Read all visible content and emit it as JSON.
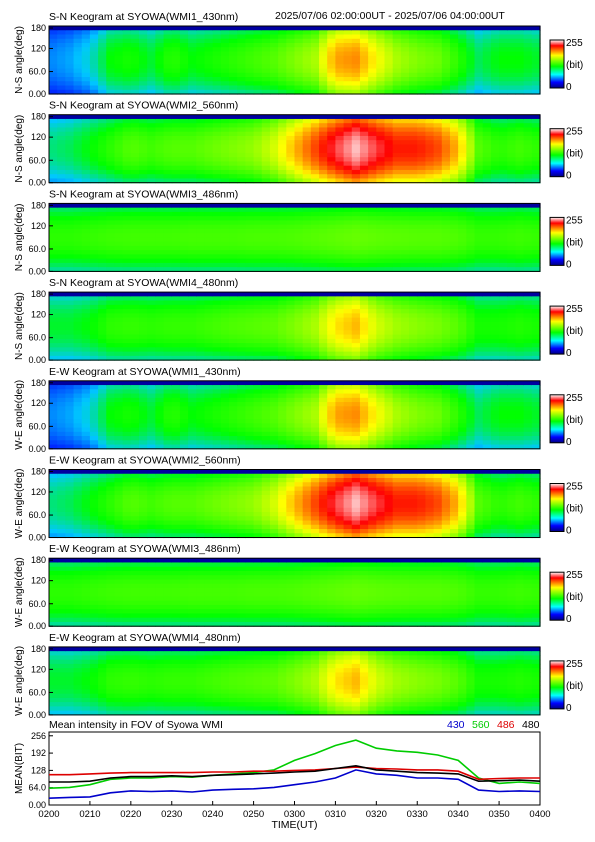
{
  "header": {
    "time_range": "2025/07/06 02:00:00UT - 2025/07/06 04:00:00UT"
  },
  "panels": [
    {
      "title": "S-N Keogram at SYOWA(WMI1_430nm)",
      "ylabel": "N-S angle(deg)",
      "yticks": [
        "180",
        "120",
        "60.0",
        "0.00"
      ],
      "cb_max": "255",
      "cb_unit": "(bit)",
      "cb_min": "0",
      "profile": "p430"
    },
    {
      "title": "S-N Keogram at SYOWA(WMI2_560nm)",
      "ylabel": "N-S angle(deg)",
      "yticks": [
        "180",
        "120",
        "60.0",
        "0.00"
      ],
      "cb_max": "255",
      "cb_unit": "(bit)",
      "cb_min": "0",
      "profile": "p560"
    },
    {
      "title": "S-N Keogram at SYOWA(WMI3_486nm)",
      "ylabel": "N-S angle(deg)",
      "yticks": [
        "180",
        "120",
        "60.0",
        "0.00"
      ],
      "cb_max": "255",
      "cb_unit": "(bit)",
      "cb_min": "0",
      "profile": "p486"
    },
    {
      "title": "S-N Keogram at SYOWA(WMI4_480nm)",
      "ylabel": "N-S angle(deg)",
      "yticks": [
        "180",
        "120",
        "60.0",
        "0.00"
      ],
      "cb_max": "255",
      "cb_unit": "(bit)",
      "cb_min": "0",
      "profile": "p480"
    },
    {
      "title": "E-W Keogram at SYOWA(WMI1_430nm)",
      "ylabel": "W-E angle(deg)",
      "yticks": [
        "180",
        "120",
        "60.0",
        "0.00"
      ],
      "cb_max": "255",
      "cb_unit": "(bit)",
      "cb_min": "0",
      "profile": "p430"
    },
    {
      "title": "E-W Keogram at SYOWA(WMI2_560nm)",
      "ylabel": "W-E angle(deg)",
      "yticks": [
        "180",
        "120",
        "60.0",
        "0.00"
      ],
      "cb_max": "255",
      "cb_unit": "(bit)",
      "cb_min": "0",
      "profile": "p560"
    },
    {
      "title": "E-W Keogram at SYOWA(WMI3_486nm)",
      "ylabel": "W-E angle(deg)",
      "yticks": [
        "180",
        "120",
        "60.0",
        "0.00"
      ],
      "cb_max": "255",
      "cb_unit": "(bit)",
      "cb_min": "0",
      "profile": "p486"
    },
    {
      "title": "E-W Keogram at SYOWA(WMI4_480nm)",
      "ylabel": "W-E angle(deg)",
      "yticks": [
        "180",
        "120",
        "60.0",
        "0.00"
      ],
      "cb_max": "255",
      "cb_unit": "(bit)",
      "cb_min": "0",
      "profile": "p480"
    }
  ],
  "colorbar_colors": [
    "#ffffff",
    "#ff0000",
    "#ffff00",
    "#00ff00",
    "#00ffff",
    "#0000ff",
    "#000080"
  ],
  "chart_data": [
    {
      "type": "heatmap",
      "title": "S-N Keogram at SYOWA(WMI1_430nm)",
      "ylabel": "N-S angle(deg)",
      "ylim": [
        0,
        180
      ],
      "colorbar": {
        "min": 0,
        "max": 255,
        "unit": "(bit)"
      },
      "time_minutes_from_0200": [
        0,
        5,
        10,
        15,
        20,
        25,
        30,
        35,
        40,
        45,
        50,
        55,
        60,
        65,
        70,
        75,
        80,
        85,
        90,
        95,
        100,
        105,
        110,
        115,
        120
      ],
      "center_intensity_bit": [
        60,
        65,
        75,
        100,
        105,
        95,
        110,
        100,
        105,
        110,
        115,
        120,
        130,
        140,
        180,
        185,
        160,
        140,
        130,
        125,
        110,
        90,
        100,
        100,
        95
      ]
    },
    {
      "type": "heatmap",
      "title": "S-N Keogram at SYOWA(WMI2_560nm)",
      "ylabel": "N-S angle(deg)",
      "ylim": [
        0,
        180
      ],
      "colorbar": {
        "min": 0,
        "max": 255,
        "unit": "(bit)"
      },
      "time_minutes_from_0200": [
        0,
        5,
        10,
        15,
        20,
        25,
        30,
        35,
        40,
        45,
        50,
        55,
        60,
        65,
        70,
        75,
        80,
        85,
        90,
        95,
        100,
        105,
        110,
        115,
        120
      ],
      "center_intensity_bit": [
        85,
        90,
        100,
        110,
        120,
        115,
        120,
        120,
        125,
        130,
        135,
        150,
        175,
        200,
        225,
        245,
        225,
        210,
        210,
        200,
        175,
        120,
        110,
        115,
        110
      ]
    },
    {
      "type": "heatmap",
      "title": "S-N Keogram at SYOWA(WMI3_486nm)",
      "ylabel": "N-S angle(deg)",
      "ylim": [
        0,
        180
      ],
      "colorbar": {
        "min": 0,
        "max": 255,
        "unit": "(bit)"
      },
      "time_minutes_from_0200": [
        0,
        5,
        10,
        15,
        20,
        25,
        30,
        35,
        40,
        45,
        50,
        55,
        60,
        65,
        70,
        75,
        80,
        85,
        90,
        95,
        100,
        105,
        110,
        115,
        120
      ],
      "center_intensity_bit": [
        110,
        110,
        112,
        114,
        115,
        115,
        115,
        116,
        116,
        116,
        117,
        117,
        118,
        120,
        122,
        124,
        122,
        121,
        120,
        120,
        118,
        112,
        112,
        114,
        112
      ]
    },
    {
      "type": "heatmap",
      "title": "S-N Keogram at SYOWA(WMI4_480nm)",
      "ylabel": "N-S angle(deg)",
      "ylim": [
        0,
        180
      ],
      "colorbar": {
        "min": 0,
        "max": 255,
        "unit": "(bit)"
      },
      "time_minutes_from_0200": [
        0,
        5,
        10,
        15,
        20,
        25,
        30,
        35,
        40,
        45,
        50,
        55,
        60,
        65,
        70,
        75,
        80,
        85,
        90,
        95,
        100,
        105,
        110,
        115,
        120
      ],
      "center_intensity_bit": [
        95,
        95,
        100,
        110,
        112,
        110,
        112,
        112,
        115,
        118,
        120,
        122,
        130,
        140,
        165,
        175,
        150,
        138,
        132,
        128,
        120,
        105,
        105,
        108,
        105
      ]
    },
    {
      "type": "heatmap",
      "title": "E-W Keogram at SYOWA(WMI1_430nm)",
      "ylabel": "W-E angle(deg)",
      "ylim": [
        0,
        180
      ],
      "colorbar": {
        "min": 0,
        "max": 255,
        "unit": "(bit)"
      },
      "time_minutes_from_0200": [
        0,
        5,
        10,
        15,
        20,
        25,
        30,
        35,
        40,
        45,
        50,
        55,
        60,
        65,
        70,
        75,
        80,
        85,
        90,
        95,
        100,
        105,
        110,
        115,
        120
      ],
      "center_intensity_bit": [
        60,
        65,
        75,
        100,
        105,
        95,
        110,
        100,
        105,
        110,
        115,
        120,
        130,
        140,
        180,
        185,
        160,
        140,
        130,
        125,
        110,
        90,
        100,
        100,
        95
      ]
    },
    {
      "type": "heatmap",
      "title": "E-W Keogram at SYOWA(WMI2_560nm)",
      "ylabel": "W-E angle(deg)",
      "ylim": [
        0,
        180
      ],
      "colorbar": {
        "min": 0,
        "max": 255,
        "unit": "(bit)"
      },
      "time_minutes_from_0200": [
        0,
        5,
        10,
        15,
        20,
        25,
        30,
        35,
        40,
        45,
        50,
        55,
        60,
        65,
        70,
        75,
        80,
        85,
        90,
        95,
        100,
        105,
        110,
        115,
        120
      ],
      "center_intensity_bit": [
        85,
        90,
        100,
        110,
        120,
        115,
        120,
        120,
        125,
        130,
        135,
        150,
        175,
        200,
        225,
        245,
        225,
        210,
        210,
        200,
        175,
        120,
        110,
        115,
        110
      ]
    },
    {
      "type": "heatmap",
      "title": "E-W Keogram at SYOWA(WMI3_486nm)",
      "ylabel": "W-E angle(deg)",
      "ylim": [
        0,
        180
      ],
      "colorbar": {
        "min": 0,
        "max": 255,
        "unit": "(bit)"
      },
      "time_minutes_from_0200": [
        0,
        5,
        10,
        15,
        20,
        25,
        30,
        35,
        40,
        45,
        50,
        55,
        60,
        65,
        70,
        75,
        80,
        85,
        90,
        95,
        100,
        105,
        110,
        115,
        120
      ],
      "center_intensity_bit": [
        110,
        110,
        112,
        114,
        115,
        115,
        115,
        116,
        116,
        116,
        117,
        117,
        118,
        120,
        122,
        124,
        122,
        121,
        120,
        120,
        118,
        112,
        112,
        114,
        112
      ]
    },
    {
      "type": "heatmap",
      "title": "E-W Keogram at SYOWA(WMI4_480nm)",
      "ylabel": "W-E angle(deg)",
      "ylim": [
        0,
        180
      ],
      "colorbar": {
        "min": 0,
        "max": 255,
        "unit": "(bit)"
      },
      "time_minutes_from_0200": [
        0,
        5,
        10,
        15,
        20,
        25,
        30,
        35,
        40,
        45,
        50,
        55,
        60,
        65,
        70,
        75,
        80,
        85,
        90,
        95,
        100,
        105,
        110,
        115,
        120
      ],
      "center_intensity_bit": [
        95,
        95,
        100,
        110,
        112,
        110,
        112,
        112,
        115,
        118,
        120,
        122,
        130,
        140,
        165,
        175,
        150,
        138,
        132,
        128,
        120,
        105,
        105,
        108,
        105
      ]
    },
    {
      "type": "line",
      "title": "Mean intensity in FOV of Syowa WMI",
      "xlabel": "TIME(UT)",
      "ylabel": "MEAN(BIT)",
      "ylim": [
        0,
        270
      ],
      "yticks": [
        "256",
        "192",
        "128",
        "64.0",
        "0.00"
      ],
      "x_ticks": [
        "0200",
        "0210",
        "0220",
        "0230",
        "0240",
        "0250",
        "0300",
        "0310",
        "0320",
        "0330",
        "0340",
        "0350",
        "0400"
      ],
      "x": [
        0,
        5,
        10,
        15,
        20,
        25,
        30,
        35,
        40,
        45,
        50,
        55,
        60,
        65,
        70,
        75,
        80,
        85,
        90,
        95,
        100,
        105,
        110,
        115,
        120
      ],
      "series": [
        {
          "name": "430",
          "color": "#0000cc",
          "values": [
            25,
            28,
            30,
            45,
            52,
            50,
            52,
            48,
            55,
            58,
            60,
            65,
            75,
            85,
            100,
            130,
            115,
            110,
            100,
            100,
            95,
            55,
            50,
            52,
            50
          ]
        },
        {
          "name": "560",
          "color": "#00cc00",
          "values": [
            62,
            65,
            75,
            95,
            100,
            100,
            105,
            103,
            110,
            115,
            120,
            130,
            165,
            190,
            220,
            240,
            210,
            200,
            195,
            185,
            165,
            100,
            80,
            85,
            80
          ]
        },
        {
          "name": "486",
          "color": "#dd0000",
          "values": [
            112,
            112,
            115,
            118,
            120,
            120,
            120,
            120,
            122,
            122,
            125,
            125,
            128,
            130,
            135,
            140,
            135,
            133,
            130,
            130,
            125,
            95,
            98,
            100,
            100
          ]
        },
        {
          "name": "480",
          "color": "#000000",
          "values": [
            85,
            85,
            88,
            100,
            105,
            105,
            108,
            105,
            110,
            112,
            115,
            118,
            122,
            125,
            135,
            145,
            130,
            125,
            120,
            118,
            115,
            88,
            90,
            92,
            88
          ]
        }
      ]
    }
  ]
}
